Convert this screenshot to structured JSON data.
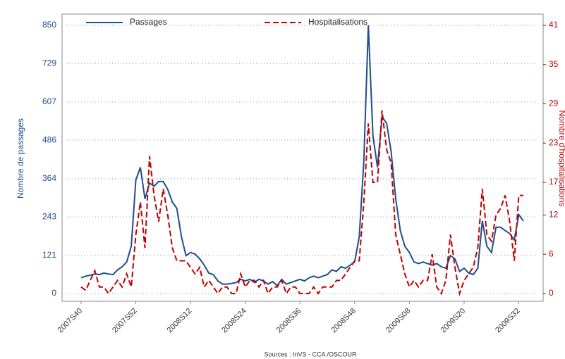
{
  "chart_data": {
    "type": "line",
    "ylabel": "Nombre de passages",
    "y2label": "Nombre d'hospitalisations",
    "source": "Sources : InVS - CCA /OSCOUR",
    "categories": [
      "2007S40",
      null,
      null,
      null,
      null,
      null,
      null,
      null,
      null,
      null,
      null,
      null,
      "2007S52",
      null,
      null,
      null,
      null,
      null,
      null,
      null,
      null,
      null,
      null,
      null,
      "2008S12",
      null,
      null,
      null,
      null,
      null,
      null,
      null,
      null,
      null,
      null,
      null,
      "2008S24",
      null,
      null,
      null,
      null,
      null,
      null,
      null,
      null,
      null,
      null,
      null,
      "2008S36",
      null,
      null,
      null,
      null,
      null,
      null,
      null,
      null,
      null,
      null,
      null,
      "2008S48",
      null,
      null,
      null,
      null,
      null,
      null,
      null,
      null,
      null,
      null,
      null,
      "2009S08",
      null,
      null,
      null,
      null,
      null,
      null,
      null,
      null,
      null,
      null,
      null,
      "2009S20",
      null,
      null,
      null,
      null,
      null,
      null,
      null,
      null,
      null,
      null,
      null,
      "2009S32",
      null
    ],
    "series": [
      {
        "name": "Passages",
        "color": "#1f4e8c",
        "axis": "y",
        "values": [
          50,
          55,
          58,
          62,
          60,
          65,
          62,
          60,
          75,
          85,
          100,
          150,
          360,
          400,
          300,
          350,
          340,
          355,
          355,
          330,
          290,
          270,
          180,
          120,
          130,
          125,
          110,
          90,
          65,
          60,
          40,
          30,
          30,
          32,
          35,
          45,
          40,
          45,
          35,
          45,
          40,
          30,
          38,
          25,
          45,
          30,
          35,
          40,
          45,
          40,
          50,
          55,
          50,
          55,
          60,
          75,
          70,
          85,
          80,
          90,
          100,
          180,
          420,
          850,
          500,
          400,
          560,
          540,
          450,
          300,
          200,
          150,
          130,
          100,
          95,
          100,
          95,
          90,
          95,
          85,
          80,
          120,
          110,
          70,
          80,
          65,
          60,
          80,
          230,
          150,
          130,
          210,
          210,
          200,
          190,
          170,
          250,
          230
        ]
      },
      {
        "name": "Hospitalisations",
        "color": "#c00000",
        "axis": "y2",
        "dashed": true,
        "values": [
          1,
          0.5,
          2,
          3.5,
          1,
          1,
          0,
          1,
          2,
          1,
          3,
          1,
          9,
          14,
          7,
          21,
          15,
          11,
          16,
          12,
          7,
          5,
          5,
          5,
          4,
          3,
          4,
          1,
          2,
          1,
          0,
          1,
          1,
          0,
          0,
          3,
          1,
          2,
          2,
          1,
          2,
          0,
          1,
          1,
          2,
          0,
          1,
          1,
          0,
          0,
          0,
          1,
          0,
          1,
          1,
          1,
          2,
          2,
          3,
          4,
          5,
          5,
          14,
          26,
          17,
          17,
          28,
          22,
          20,
          9,
          6,
          3,
          1,
          2,
          1,
          2,
          2,
          6,
          1,
          0,
          2,
          9,
          4,
          0,
          2,
          3,
          4,
          7,
          16,
          9,
          8,
          12,
          13,
          15,
          11,
          5,
          15,
          15
        ]
      }
    ],
    "ylim": [
      0,
      850
    ],
    "yticks": [
      0,
      121,
      243,
      364,
      486,
      607,
      729,
      850
    ],
    "y2lim": [
      0,
      41
    ],
    "y2ticks": [
      0,
      6,
      12,
      17,
      23,
      29,
      35,
      41
    ],
    "grid": true
  }
}
